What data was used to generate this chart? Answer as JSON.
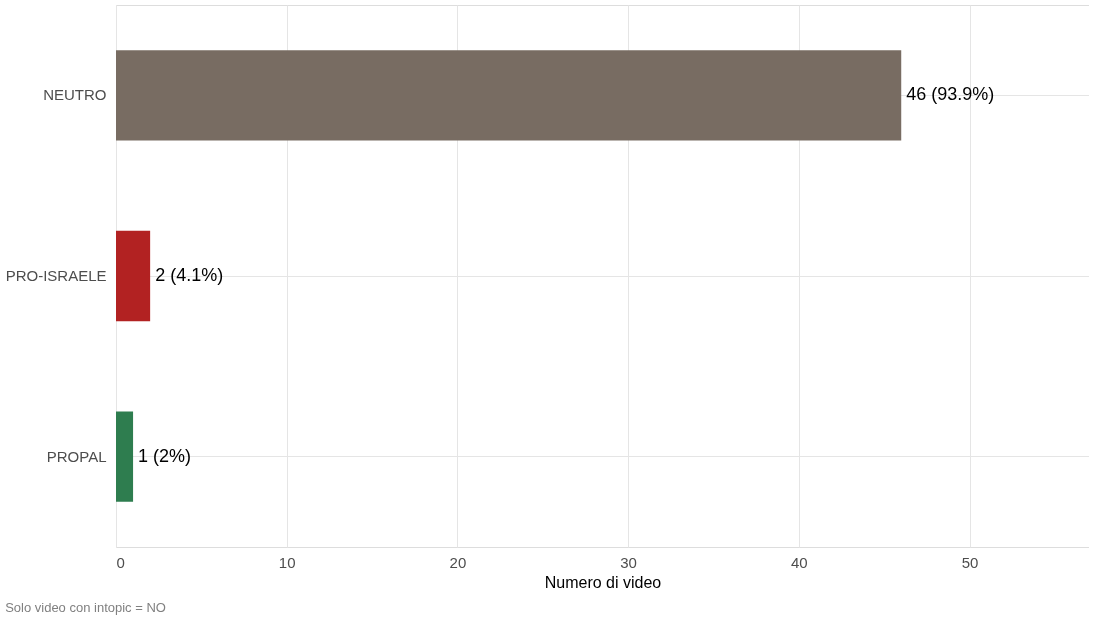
{
  "chart_data": {
    "type": "bar",
    "orientation": "horizontal",
    "categories": [
      "NEUTRO",
      "PRO-ISRAELE",
      "PROPAL"
    ],
    "values": [
      46,
      2,
      1
    ],
    "colors": [
      "#786c62",
      "#b22222",
      "#2e7d4f"
    ],
    "value_labels": [
      "46 (93.9%)",
      "2 (4.1%)",
      "1 (2%)"
    ],
    "xlabel": "Numero di video",
    "xlim": [
      0,
      57
    ],
    "xticks": [
      0,
      10,
      20,
      30,
      40,
      50
    ],
    "grid": true,
    "annotations": [
      "Solo video con intopic = NO"
    ]
  }
}
